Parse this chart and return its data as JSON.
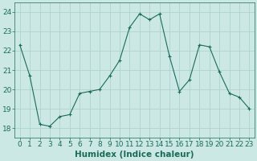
{
  "x": [
    0,
    1,
    2,
    3,
    4,
    5,
    6,
    7,
    8,
    9,
    10,
    11,
    12,
    13,
    14,
    15,
    16,
    17,
    18,
    19,
    20,
    21,
    22,
    23
  ],
  "y": [
    22.3,
    20.7,
    18.2,
    18.1,
    18.6,
    18.7,
    19.8,
    19.9,
    20.0,
    20.7,
    21.5,
    23.2,
    23.9,
    23.6,
    23.9,
    21.7,
    19.9,
    20.5,
    22.3,
    22.2,
    20.9,
    19.8,
    19.6,
    19.0
  ],
  "line_color": "#1a6b5a",
  "marker": "+",
  "marker_size": 3,
  "marker_linewidth": 0.8,
  "linewidth": 0.8,
  "bg_color": "#cce8e4",
  "grid_color": "#aacfcb",
  "xlabel": "Humidex (Indice chaleur)",
  "ylim": [
    17.5,
    24.5
  ],
  "xlim": [
    -0.5,
    23.5
  ],
  "yticks": [
    18,
    19,
    20,
    21,
    22,
    23,
    24
  ],
  "xticks": [
    0,
    1,
    2,
    3,
    4,
    5,
    6,
    7,
    8,
    9,
    10,
    11,
    12,
    13,
    14,
    15,
    16,
    17,
    18,
    19,
    20,
    21,
    22,
    23
  ],
  "tick_color": "#1a6b5a",
  "xlabel_fontsize": 7.5,
  "tick_fontsize": 6.5
}
